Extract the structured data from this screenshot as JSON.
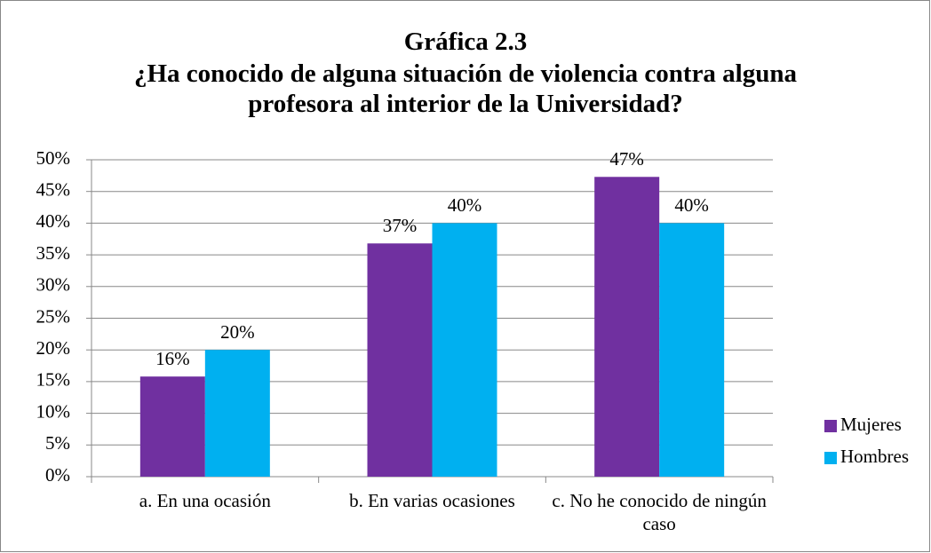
{
  "chart_data": {
    "type": "bar",
    "title": "Gráfica 2.3",
    "subtitle": "¿Ha conocido de alguna situación de violencia contra alguna profesora al interior de la Universidad?",
    "categories": [
      "a. En una ocasión",
      "b. En varias ocasiones",
      "c. No he conocido de ningún caso"
    ],
    "series": [
      {
        "name": "Mujeres",
        "color": "#7030a0",
        "values": [
          15.8,
          36.8,
          47.3
        ],
        "value_labels": [
          "16%",
          "37%",
          "47%"
        ]
      },
      {
        "name": "Hombres",
        "color": "#00b0f0",
        "values": [
          20,
          40,
          40
        ],
        "value_labels": [
          "20%",
          "40%",
          "40%"
        ]
      }
    ],
    "ylim": [
      0,
      50
    ],
    "yticks": [
      {
        "value": 0,
        "label": "0%"
      },
      {
        "value": 5,
        "label": "5%"
      },
      {
        "value": 10,
        "label": "10%"
      },
      {
        "value": 15,
        "label": "15%"
      },
      {
        "value": 20,
        "label": "20%"
      },
      {
        "value": 25,
        "label": "25%"
      },
      {
        "value": 30,
        "label": "30%"
      },
      {
        "value": 35,
        "label": "35%"
      },
      {
        "value": 40,
        "label": "40%"
      },
      {
        "value": 45,
        "label": "45%"
      },
      {
        "value": 50,
        "label": "50%"
      }
    ],
    "grid": true,
    "legend": "right"
  }
}
